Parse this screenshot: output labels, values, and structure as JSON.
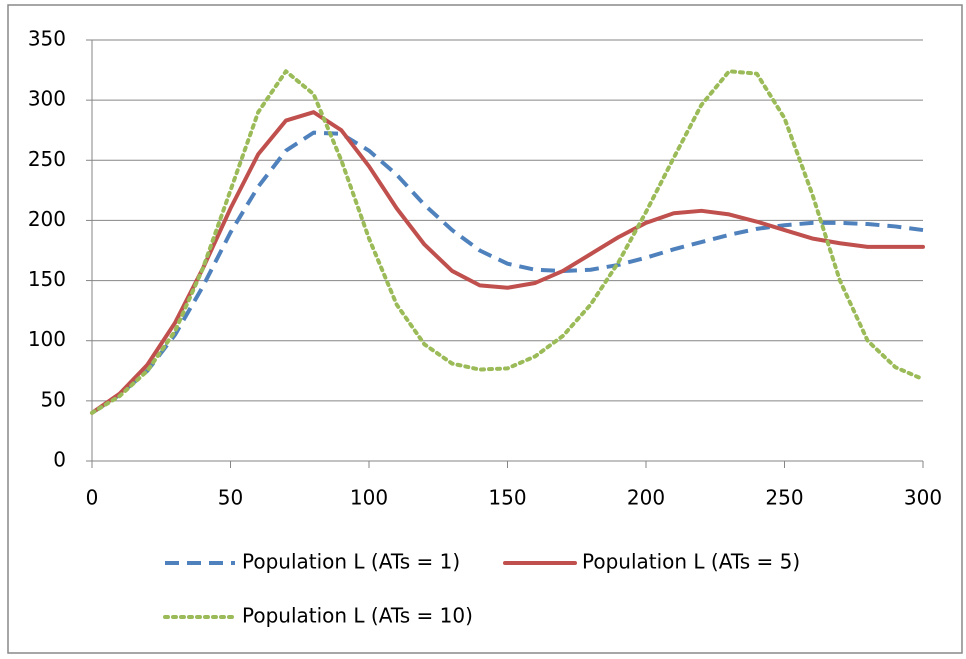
{
  "chart_data": {
    "type": "line",
    "x": [
      0,
      10,
      20,
      30,
      40,
      50,
      60,
      70,
      80,
      90,
      100,
      110,
      120,
      130,
      140,
      150,
      160,
      170,
      180,
      190,
      200,
      210,
      220,
      230,
      240,
      250,
      260,
      270,
      280,
      290,
      300
    ],
    "series": [
      {
        "name": "Population L (ATs = 1)",
        "color": "#4f81bd",
        "dash": "dashed",
        "values": [
          40,
          55,
          75,
          105,
          145,
          190,
          228,
          258,
          273,
          272,
          258,
          238,
          213,
          192,
          175,
          164,
          159,
          158,
          159,
          163,
          169,
          176,
          182,
          188,
          193,
          196,
          198,
          198,
          197,
          195,
          192
        ]
      },
      {
        "name": "Population L (ATs = 5)",
        "color": "#c0504d",
        "dash": "solid",
        "values": [
          40,
          56,
          80,
          115,
          160,
          210,
          255,
          283,
          290,
          275,
          245,
          210,
          180,
          158,
          146,
          144,
          148,
          158,
          172,
          186,
          198,
          206,
          208,
          205,
          199,
          192,
          185,
          181,
          178,
          178,
          178
        ]
      },
      {
        "name": "Population L (ATs = 10)",
        "color": "#9bbb59",
        "dash": "dotted",
        "values": [
          40,
          54,
          75,
          108,
          160,
          225,
          290,
          324,
          305,
          250,
          185,
          130,
          97,
          81,
          76,
          77,
          87,
          104,
          130,
          165,
          207,
          252,
          296,
          324,
          322,
          285,
          222,
          150,
          100,
          78,
          68
        ]
      }
    ],
    "xlim": [
      0,
      300
    ],
    "xticks": [
      0,
      50,
      100,
      150,
      200,
      250,
      300
    ],
    "ylim": [
      0,
      350
    ],
    "yticks": [
      0,
      50,
      100,
      150,
      200,
      250,
      300,
      350
    ],
    "grid": true,
    "legend": "bottom"
  }
}
